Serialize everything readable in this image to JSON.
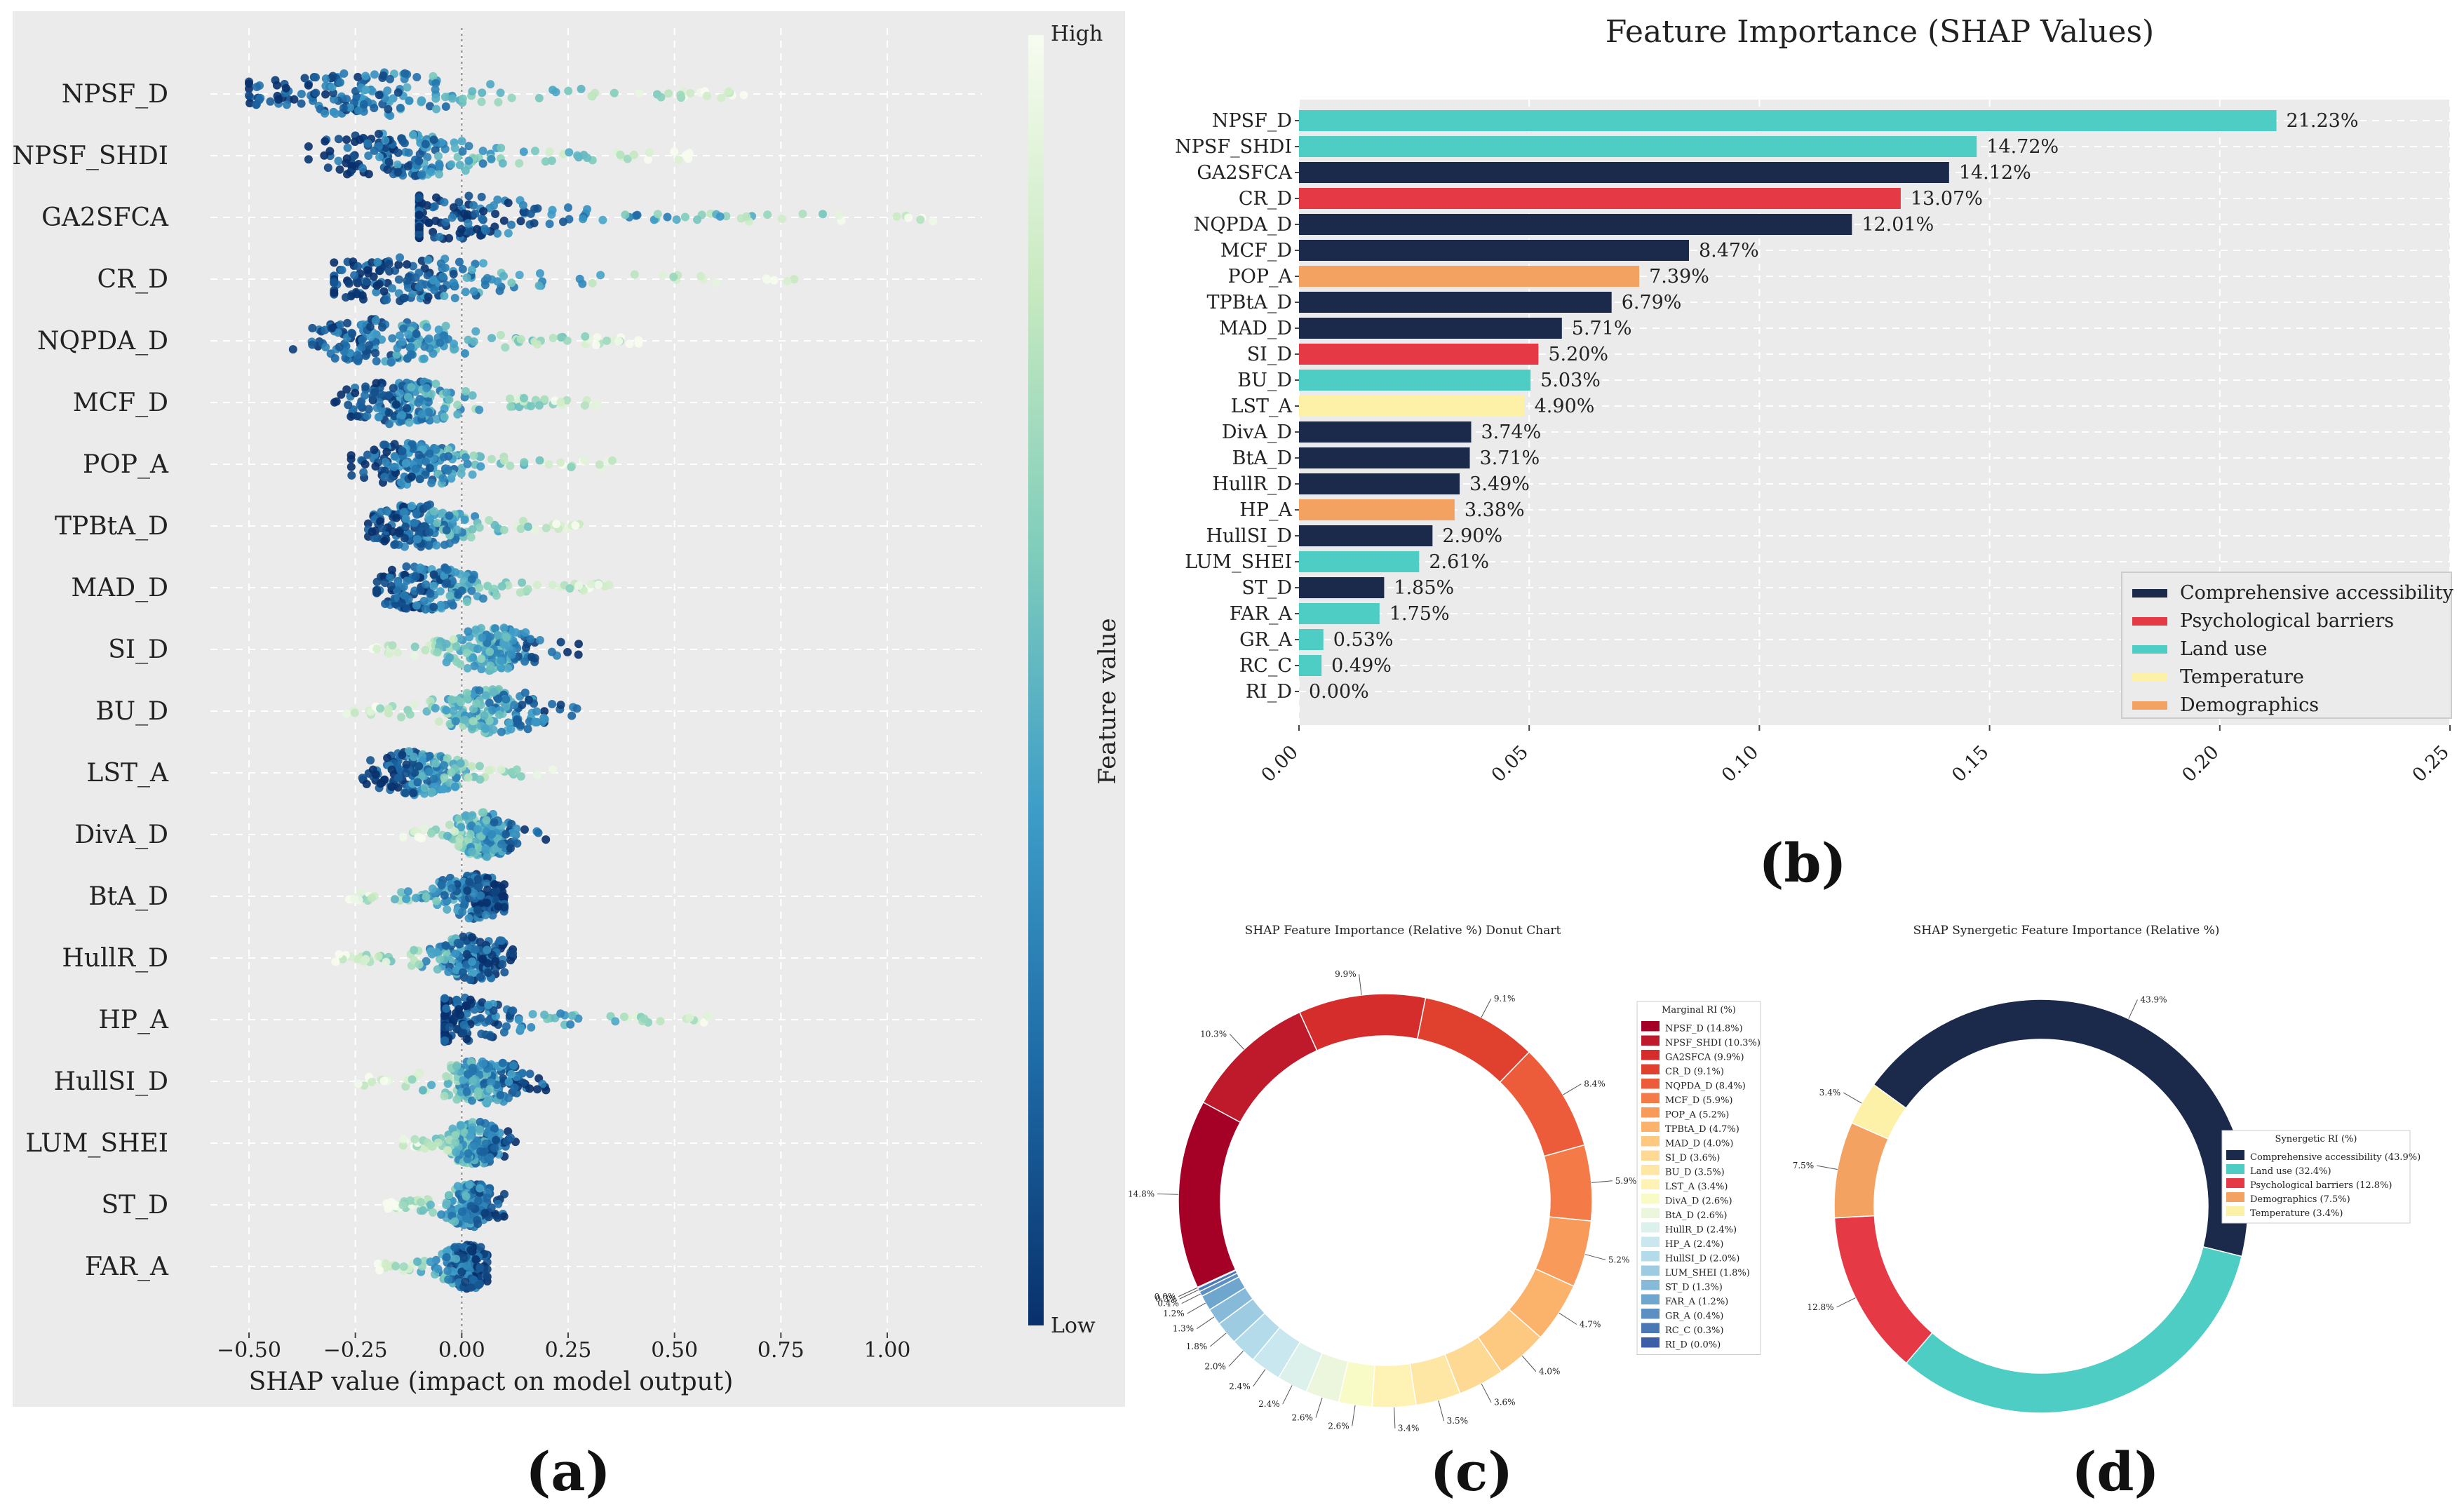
{
  "panel_letters": [
    "(a)",
    "(b)",
    "(c)",
    "(d)"
  ],
  "chart_data": [
    {
      "id": "a",
      "type": "scatter",
      "subtype": "shap-beeswarm",
      "title": "",
      "xlabel": "SHAP value (impact on model output)",
      "ylabel": "",
      "xlim": [
        -0.58,
        1.22
      ],
      "xticks": [
        -0.5,
        -0.25,
        0.0,
        0.25,
        0.5,
        0.75,
        1.0
      ],
      "xtick_labels": [
        "−0.50",
        "−0.25",
        "0.00",
        "0.25",
        "0.50",
        "0.75",
        "1.00"
      ],
      "grid": true,
      "colorbar": {
        "label": "Feature value",
        "high": "High",
        "low": "Low",
        "colors": [
          "#08306b",
          "#1d6aa6",
          "#3e9dc8",
          "#7fcdbb",
          "#c7e9c0",
          "#f7fcf0"
        ]
      },
      "features": [
        {
          "name": "NPSF_D",
          "min": -0.5,
          "max": 0.68,
          "low_side": -1
        },
        {
          "name": "NPSF_SHDI",
          "min": -0.36,
          "max": 0.55,
          "low_side": -1
        },
        {
          "name": "GA2SFCA",
          "min": -0.1,
          "max": 1.13,
          "low_side": -1
        },
        {
          "name": "CR_D",
          "min": -0.3,
          "max": 0.8,
          "low_side": -1
        },
        {
          "name": "NQPDA_D",
          "min": -0.4,
          "max": 0.43,
          "low_side": -1
        },
        {
          "name": "MCF_D",
          "min": -0.3,
          "max": 0.32,
          "low_side": -1
        },
        {
          "name": "POP_A",
          "min": -0.26,
          "max": 0.36,
          "low_side": -1
        },
        {
          "name": "TPBtA_D",
          "min": -0.22,
          "max": 0.28,
          "low_side": -1
        },
        {
          "name": "MAD_D",
          "min": -0.2,
          "max": 0.35,
          "low_side": -1
        },
        {
          "name": "SI_D",
          "min": -0.22,
          "max": 0.28,
          "low_side": 1
        },
        {
          "name": "BU_D",
          "min": -0.28,
          "max": 0.3,
          "low_side": 1
        },
        {
          "name": "LST_A",
          "min": -0.24,
          "max": 0.22,
          "low_side": -1
        },
        {
          "name": "DivA_D",
          "min": -0.14,
          "max": 0.2,
          "low_side": 1
        },
        {
          "name": "BtA_D",
          "min": -0.3,
          "max": 0.1,
          "low_side": 1
        },
        {
          "name": "HullR_D",
          "min": -0.3,
          "max": 0.12,
          "low_side": 1
        },
        {
          "name": "HP_A",
          "min": -0.04,
          "max": 0.6,
          "low_side": -1
        },
        {
          "name": "HullSI_D",
          "min": -0.26,
          "max": 0.22,
          "low_side": 1
        },
        {
          "name": "LUM_SHEI",
          "min": -0.14,
          "max": 0.14,
          "low_side": 1
        },
        {
          "name": "ST_D",
          "min": -0.18,
          "max": 0.1,
          "low_side": 1
        },
        {
          "name": "FAR_A",
          "min": -0.2,
          "max": 0.06,
          "low_side": 1
        }
      ]
    },
    {
      "id": "b",
      "type": "bar",
      "orientation": "horizontal",
      "title": "Feature Importance (SHAP Values)",
      "xlim": [
        0,
        0.25
      ],
      "xticks": [
        0.0,
        0.05,
        0.1,
        0.15,
        0.2,
        0.25
      ],
      "xtick_labels": [
        "0.00",
        "0.05",
        "0.10",
        "0.15",
        "0.20",
        "0.25"
      ],
      "categories": [
        "NPSF_D",
        "NPSF_SHDI",
        "GA2SFCA",
        "CR_D",
        "NQPDA_D",
        "MCF_D",
        "POP_A",
        "TPBtA_D",
        "MAD_D",
        "SI_D",
        "BU_D",
        "LST_A",
        "DivA_D",
        "BtA_D",
        "HullR_D",
        "HP_A",
        "HullSI_D",
        "LUM_SHEI",
        "ST_D",
        "FAR_A",
        "GR_A",
        "RC_C",
        "RI_D"
      ],
      "values": [
        0.2123,
        0.1472,
        0.1412,
        0.1307,
        0.1201,
        0.0847,
        0.0739,
        0.0679,
        0.0571,
        0.052,
        0.0503,
        0.049,
        0.0374,
        0.0371,
        0.0349,
        0.0338,
        0.029,
        0.0261,
        0.0185,
        0.0175,
        0.0053,
        0.0049,
        0.0
      ],
      "value_labels": [
        "21.23%",
        "14.72%",
        "14.12%",
        "13.07%",
        "12.01%",
        "8.47%",
        "7.39%",
        "6.79%",
        "5.71%",
        "5.20%",
        "5.03%",
        "4.90%",
        "3.74%",
        "3.71%",
        "3.49%",
        "3.38%",
        "2.90%",
        "2.61%",
        "1.85%",
        "1.75%",
        "0.53%",
        "0.49%",
        "0.00%"
      ],
      "groups": [
        "Land use",
        "Land use",
        "Comprehensive accessibility",
        "Psychological barriers",
        "Comprehensive accessibility",
        "Comprehensive accessibility",
        "Demographics",
        "Comprehensive accessibility",
        "Comprehensive accessibility",
        "Psychological barriers",
        "Land use",
        "Temperature",
        "Comprehensive accessibility",
        "Comprehensive accessibility",
        "Comprehensive accessibility",
        "Demographics",
        "Comprehensive accessibility",
        "Land use",
        "Comprehensive accessibility",
        "Land use",
        "Land use",
        "Land use",
        "Comprehensive accessibility"
      ],
      "legend": {
        "position": "lower-right",
        "entries": [
          {
            "label": "Comprehensive accessibility",
            "color": "#1b2a4a"
          },
          {
            "label": "Psychological barriers",
            "color": "#e63946"
          },
          {
            "label": "Land use",
            "color": "#4ecdc4"
          },
          {
            "label": "Temperature",
            "color": "#fdf1a7"
          },
          {
            "label": "Demographics",
            "color": "#f4a261"
          }
        ]
      }
    },
    {
      "id": "c",
      "type": "pie",
      "subtype": "donut",
      "title": "SHAP Feature Importance (Relative %) Donut Chart",
      "legend_title": "Marginal RI (%)",
      "slices": [
        {
          "label": "NPSF_D (14.8%)",
          "value": 14.8,
          "pct_label": "14.8%",
          "color": "#a50026"
        },
        {
          "label": "NPSF_SHDI (10.3%)",
          "value": 10.3,
          "pct_label": "10.3%",
          "color": "#be1a2b"
        },
        {
          "label": "GA2SFCA (9.9%)",
          "value": 9.9,
          "pct_label": "9.9%",
          "color": "#d42d2b"
        },
        {
          "label": "CR_D (9.1%)",
          "value": 9.1,
          "pct_label": "9.1%",
          "color": "#e0412e"
        },
        {
          "label": "NQPDA_D (8.4%)",
          "value": 8.4,
          "pct_label": "8.4%",
          "color": "#ec5c3b"
        },
        {
          "label": "MCF_D (5.9%)",
          "value": 5.9,
          "pct_label": "5.9%",
          "color": "#f47a48"
        },
        {
          "label": "POP_A (5.2%)",
          "value": 5.2,
          "pct_label": "5.2%",
          "color": "#f89a59"
        },
        {
          "label": "TPBtA_D (4.7%)",
          "value": 4.7,
          "pct_label": "4.7%",
          "color": "#fbb36c"
        },
        {
          "label": "MAD_D (4.0%)",
          "value": 4.0,
          "pct_label": "4.0%",
          "color": "#fdc880"
        },
        {
          "label": "SI_D (3.6%)",
          "value": 3.6,
          "pct_label": "3.6%",
          "color": "#fed994"
        },
        {
          "label": "BU_D (3.5%)",
          "value": 3.5,
          "pct_label": "3.5%",
          "color": "#fee7a5"
        },
        {
          "label": "LST_A (3.4%)",
          "value": 3.4,
          "pct_label": "3.4%",
          "color": "#fef3b5"
        },
        {
          "label": "DivA_D (2.6%)",
          "value": 2.6,
          "pct_label": "2.6%",
          "color": "#f8fbc6"
        },
        {
          "label": "BtA_D (2.6%)",
          "value": 2.6,
          "pct_label": "2.6%",
          "color": "#ebf6dc"
        },
        {
          "label": "HullR_D (2.4%)",
          "value": 2.4,
          "pct_label": "2.4%",
          "color": "#dcf0ec"
        },
        {
          "label": "HP_A (2.4%)",
          "value": 2.4,
          "pct_label": "2.4%",
          "color": "#c9e7ef"
        },
        {
          "label": "HullSI_D (2.0%)",
          "value": 2.0,
          "pct_label": "2.0%",
          "color": "#b3dbe9"
        },
        {
          "label": "LUM_SHEI (1.8%)",
          "value": 1.8,
          "pct_label": "1.8%",
          "color": "#9dcce2"
        },
        {
          "label": "ST_D (1.3%)",
          "value": 1.3,
          "pct_label": "1.3%",
          "color": "#86bad8"
        },
        {
          "label": "FAR_A (1.2%)",
          "value": 1.2,
          "pct_label": "1.2%",
          "color": "#6fa6cd"
        },
        {
          "label": "GR_A (0.4%)",
          "value": 0.4,
          "pct_label": "0.4%",
          "color": "#5c8fc2"
        },
        {
          "label": "RC_C (0.3%)",
          "value": 0.3,
          "pct_label": "0.3%",
          "color": "#4a78b5"
        },
        {
          "label": "RI_D (0.0%)",
          "value": 0.0,
          "pct_label": "0.0%",
          "color": "#3b5fa6"
        }
      ]
    },
    {
      "id": "d",
      "type": "pie",
      "subtype": "donut",
      "title": "SHAP Synergetic Feature Importance (Relative %)",
      "legend_title": "Synergetic RI (%)",
      "slices": [
        {
          "label": "Comprehensive accessibility (43.9%)",
          "value": 43.9,
          "pct_label": "43.9%",
          "color": "#1b2a4a"
        },
        {
          "label": "Land use (32.4%)",
          "value": 32.4,
          "pct_label": "",
          "color": "#4ecdc4"
        },
        {
          "label": "Psychological barriers (12.8%)",
          "value": 12.8,
          "pct_label": "12.8%",
          "color": "#e63946"
        },
        {
          "label": "Demographics (7.5%)",
          "value": 7.5,
          "pct_label": "7.5%",
          "color": "#f4a261"
        },
        {
          "label": "Temperature (3.4%)",
          "value": 3.4,
          "pct_label": "3.4%",
          "color": "#fdf1a7"
        }
      ]
    }
  ]
}
